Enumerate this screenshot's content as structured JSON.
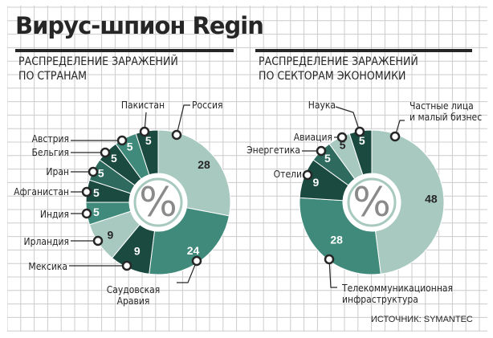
{
  "title": "Вирус-шпион Regin",
  "source": "ИСТОЧНИК: SYMANTEC",
  "center_symbol": "%",
  "colors": {
    "dark": "#1a4a40",
    "mid_dark": "#2e6b5e",
    "mid": "#3f8a7a",
    "light": "#a8c9bf",
    "line": "#262626",
    "grid": "#cccccc"
  },
  "chart_data": [
    {
      "type": "pie",
      "subtitle_lines": [
        "РАСПРЕДЕЛЕНИЕ ЗАРАЖЕНИЙ",
        "ПО СТРАНАМ"
      ],
      "slices": [
        {
          "label": "Россия",
          "value": 28,
          "value_label": "28"
        },
        {
          "label": "Саудовская\nАравия",
          "value": 24,
          "value_label": "24"
        },
        {
          "label": "Мексика",
          "value": 9,
          "value_label": "9"
        },
        {
          "label": "Ирландия",
          "value": 9,
          "value_label": "9"
        },
        {
          "label": "Индия",
          "value": 5,
          "value_label": "5"
        },
        {
          "label": "Афганистан",
          "value": 5,
          "value_label": "5"
        },
        {
          "label": "Иран",
          "value": 5,
          "value_label": "5"
        },
        {
          "label": "Бельгия",
          "value": 5,
          "value_label": "5"
        },
        {
          "label": "Австрия",
          "value": 5,
          "value_label": "5"
        },
        {
          "label": "Пакистан",
          "value": 5,
          "value_label": "5"
        }
      ]
    },
    {
      "type": "pie",
      "subtitle_lines": [
        "РАСПРЕДЕЛЕНИЕ ЗАРАЖЕНИЙ",
        "ПО СЕКТОРАМ ЭКОНОМИКИ"
      ],
      "slices": [
        {
          "label": "Частные лица\nи малый бизнес",
          "value": 48,
          "value_label": "48"
        },
        {
          "label": "Телекоммуникационная\nинфраструктура",
          "value": 28,
          "value_label": "28"
        },
        {
          "label": "Отели",
          "value": 9,
          "value_label": "9"
        },
        {
          "label": "Энергетика",
          "value": 5,
          "value_label": "5"
        },
        {
          "label": "Авиация",
          "value": 5,
          "value_label": "5"
        },
        {
          "label": "Наука",
          "value": 5,
          "value_label": "5"
        }
      ]
    }
  ]
}
